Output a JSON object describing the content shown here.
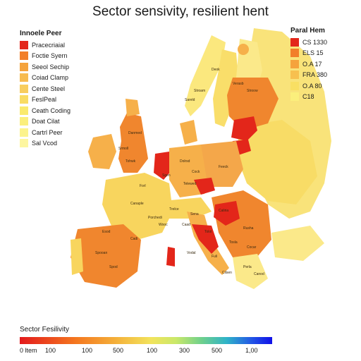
{
  "title": "Sector sensivity, resilient hent",
  "legend_left": {
    "title": "Innoele Peer",
    "items": [
      {
        "label": "Pracecriaial",
        "color": "#e3261a"
      },
      {
        "label": "Foctie Syern",
        "color": "#f27f2a"
      },
      {
        "label": "Seeol Sechip",
        "color": "#f5a33c"
      },
      {
        "label": "Coiad Clamp",
        "color": "#f7bb4f"
      },
      {
        "label": "Cente Steel",
        "color": "#f8cd5e"
      },
      {
        "label": "FeslPeal",
        "color": "#f9dc63"
      },
      {
        "label": "Ceath Coding",
        "color": "#faea6d"
      },
      {
        "label": "Doat Cilat",
        "color": "#fbef7c"
      },
      {
        "label": "Cartrl Peer",
        "color": "#fcf38c"
      },
      {
        "label": "Sal Vcod",
        "color": "#fdf6a0"
      }
    ]
  },
  "legend_right": {
    "title": "Paral Hem",
    "items": [
      {
        "label": "CS 1330",
        "color": "#e3261a"
      },
      {
        "label": "ELS 15",
        "color": "#f27f2a"
      },
      {
        "label": "O.A 17",
        "color": "#f5a33c"
      },
      {
        "label": "FRA 380",
        "color": "#f7c04f"
      },
      {
        "label": "O.A 80",
        "color": "#f9df63"
      },
      {
        "label": "C18",
        "color": "#fbef7c"
      }
    ]
  },
  "scale": {
    "title": "Sector Fesilivity",
    "ticks": [
      "0 ltem",
      "100",
      "100",
      "500",
      "100",
      "300",
      "500",
      "1,00"
    ]
  },
  "colors": {
    "red": "#e3261a",
    "orange": "#f0862e",
    "light_orange": "#f6b04a",
    "yellow": "#f8d55e",
    "light_yellow": "#fbe98a"
  },
  "map_labels": [
    "Stroam",
    "Sareld",
    "Danmed",
    "Srmoll",
    "Tohwk",
    "Deok",
    "Verasb",
    "Stroow",
    "Dolrsd",
    "Cock",
    "Forl",
    "Sgen",
    "Feeck",
    "Telewed",
    "Canaple",
    "Porchedi",
    "Trelce",
    "Sena",
    "Tolol",
    "Caliria",
    "Cadi",
    "Wooc",
    "Caad",
    "Vodal",
    "Esod",
    "Spooan",
    "Spod",
    "Fuli",
    "Rusha",
    "Tosla",
    "Cocar",
    "Perla",
    "Canod",
    "Cilsen"
  ]
}
